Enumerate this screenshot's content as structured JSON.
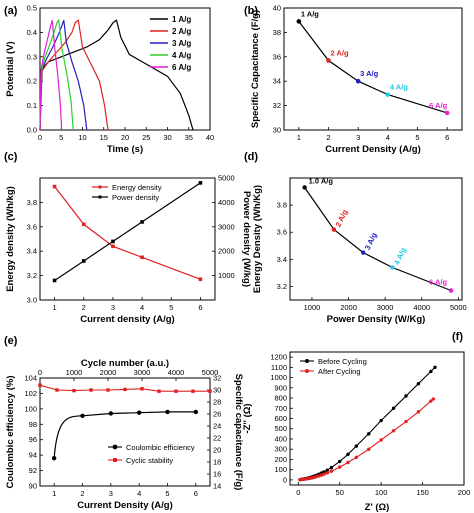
{
  "chart_data": [
    {
      "panel": "(a)",
      "type": "line",
      "xlabel": "Time (s)",
      "ylabel": "Potential (V)",
      "xlim": [
        0,
        40
      ],
      "ylim": [
        0,
        0.5
      ],
      "xticks": [
        0,
        5,
        10,
        15,
        20,
        25,
        30,
        35,
        40
      ],
      "yticks": [
        0.0,
        0.1,
        0.2,
        0.3,
        0.4,
        0.5
      ],
      "legend": "top-right",
      "series": [
        {
          "name": "1 A/g",
          "color": "#000000",
          "x": [
            0,
            0.5,
            2,
            5,
            8,
            11,
            14,
            16,
            17.2,
            18,
            19,
            21,
            25,
            30,
            33,
            35,
            36
          ],
          "y": [
            0,
            0.25,
            0.28,
            0.3,
            0.32,
            0.34,
            0.37,
            0.41,
            0.44,
            0.45,
            0.38,
            0.31,
            0.27,
            0.22,
            0.15,
            0.06,
            0
          ]
        },
        {
          "name": "2 A/g",
          "color": "#e02020",
          "x": [
            0,
            0.4,
            2,
            4,
            6,
            7.5,
            8.3,
            9,
            10,
            12,
            14,
            15.2,
            16
          ],
          "y": [
            0,
            0.24,
            0.28,
            0.32,
            0.36,
            0.4,
            0.44,
            0.45,
            0.34,
            0.27,
            0.2,
            0.1,
            0
          ]
        },
        {
          "name": "3 A/g",
          "color": "#2020c0",
          "x": [
            0,
            0.3,
            1.5,
            3,
            4.3,
            5.2,
            5.6,
            6.2,
            7.5,
            9,
            10.3,
            11
          ],
          "y": [
            0,
            0.24,
            0.29,
            0.34,
            0.39,
            0.43,
            0.45,
            0.36,
            0.28,
            0.2,
            0.1,
            0
          ]
        },
        {
          "name": "4 A/g",
          "color": "#2fcf2f",
          "x": [
            0,
            0.3,
            1.2,
            2.3,
            3.3,
            4,
            4.4,
            5.2,
            6.3,
            7.3,
            7.8
          ],
          "y": [
            0,
            0.24,
            0.3,
            0.35,
            0.4,
            0.44,
            0.45,
            0.33,
            0.23,
            0.12,
            0
          ]
        },
        {
          "name": "6 A/g",
          "color": "#e020d0",
          "x": [
            0,
            0.2,
            0.8,
            1.6,
            2.4,
            2.9,
            3.5,
            4.2,
            4.8,
            5.1
          ],
          "y": [
            0,
            0.24,
            0.3,
            0.36,
            0.42,
            0.45,
            0.33,
            0.22,
            0.1,
            0
          ]
        }
      ]
    },
    {
      "panel": "(b)",
      "type": "line",
      "xlabel": "Current Density (A/g)",
      "ylabel": "Specific Capacitance (F/g)",
      "xlim": [
        0.5,
        6.5
      ],
      "ylim": [
        30,
        40
      ],
      "xticks": [
        1,
        2,
        3,
        4,
        5,
        6
      ],
      "yticks": [
        30,
        32,
        34,
        36,
        38,
        40
      ],
      "x": [
        1,
        2,
        3,
        4,
        6
      ],
      "y": [
        38.9,
        35.7,
        34.0,
        32.9,
        31.4
      ],
      "labels": [
        "1 A/g",
        "2 A/g",
        "3 A/g",
        "4 A/g",
        "6 A/g"
      ],
      "label_colors": [
        "#000000",
        "#e02020",
        "#2020c0",
        "#20c8e8",
        "#e020d0"
      ]
    },
    {
      "panel": "(c)",
      "type": "line",
      "xlabel": "Current density (A/g)",
      "ylabel": "Energy density (Wh/kg)",
      "ylabel_right": "Power density (W/kg)",
      "xlim": [
        0.5,
        6.5
      ],
      "ylim": [
        3.0,
        4.0
      ],
      "ylim_right": [
        0,
        5000
      ],
      "xticks": [
        1,
        2,
        3,
        4,
        5,
        6
      ],
      "yticks": [
        3.0,
        3.2,
        3.4,
        3.6,
        3.8
      ],
      "yticks_right": [
        1000,
        2000,
        3000,
        4000,
        5000
      ],
      "legend": "top-center",
      "series": [
        {
          "name": "Energy density",
          "color": "#e02020",
          "axis": "left",
          "x": [
            1,
            2,
            3,
            4,
            6
          ],
          "y": [
            3.93,
            3.62,
            3.44,
            3.35,
            3.17
          ]
        },
        {
          "name": "Power density",
          "color": "#000000",
          "axis": "right",
          "x": [
            1,
            2,
            3,
            4,
            6
          ],
          "y": [
            800,
            1600,
            2400,
            3200,
            4800
          ]
        }
      ]
    },
    {
      "panel": "(d)",
      "type": "line",
      "xlabel": "Power Density (W/Kg)",
      "ylabel": "Energy Density (Wh/Kg)",
      "xlim": [
        400,
        5100
      ],
      "ylim": [
        3.1,
        4.0
      ],
      "xticks": [
        1000,
        2000,
        3000,
        4000,
        5000
      ],
      "yticks": [
        3.2,
        3.4,
        3.6,
        3.8
      ],
      "x": [
        800,
        1600,
        2400,
        3200,
        4800
      ],
      "y": [
        3.93,
        3.62,
        3.45,
        3.34,
        3.17
      ],
      "labels": [
        "1.0 A/g",
        "2 A/g",
        "3 A/g",
        "4 A/g",
        "6 A/g"
      ],
      "label_colors": [
        "#000000",
        "#e02020",
        "#2020c0",
        "#20c8e8",
        "#e020d0"
      ]
    },
    {
      "panel": "(e)",
      "type": "line",
      "xlabel": "Current Density (A/g)",
      "xlabel_top": "Cycle number (a.u.)",
      "ylabel": "Coulombic efficiency (%)",
      "ylabel_right": "Specific capacitance (F/g)",
      "xlim": [
        0.5,
        6.5
      ],
      "xlim_top": [
        0,
        5000
      ],
      "ylim": [
        90,
        104
      ],
      "ylim_right": [
        14,
        32
      ],
      "xticks": [
        1,
        2,
        3,
        4,
        5,
        6
      ],
      "xticks_top": [
        0,
        1000,
        2000,
        3000,
        4000,
        5000
      ],
      "yticks": [
        90,
        92,
        94,
        96,
        98,
        100,
        102,
        104
      ],
      "yticks_right": [
        14,
        16,
        18,
        20,
        22,
        24,
        26,
        28,
        30,
        32
      ],
      "legend": "bottom-right",
      "series": [
        {
          "name": "Coulombic efficiency",
          "color": "#000000",
          "axis": "left",
          "x": [
            1,
            2,
            3,
            4,
            5,
            6
          ],
          "y": [
            93.6,
            99.1,
            99.4,
            99.5,
            99.6,
            99.6
          ]
        },
        {
          "name": "Cyclic stability",
          "color": "#e02020",
          "axis": "right_top",
          "x": [
            0,
            500,
            1000,
            1500,
            2000,
            2500,
            3000,
            3500,
            4000,
            4500,
            5000
          ],
          "y": [
            30.8,
            30.0,
            29.9,
            30.0,
            30.0,
            30.1,
            30.2,
            29.8,
            29.8,
            29.8,
            29.8
          ]
        }
      ]
    },
    {
      "panel": "(f)",
      "type": "line",
      "xlabel": "Z' (Ω)",
      "ylabel": "-Z'' (Ω)",
      "xlim": [
        -10,
        200
      ],
      "ylim": [
        -50,
        1250
      ],
      "xticks": [
        0,
        50,
        100,
        150,
        200
      ],
      "yticks": [
        0,
        100,
        200,
        300,
        400,
        500,
        600,
        700,
        800,
        900,
        1000,
        1100,
        1200
      ],
      "legend": "top-left",
      "series": [
        {
          "name": "Before Cycling",
          "color": "#000000",
          "x": [
            2,
            4,
            6,
            8,
            10,
            12,
            14,
            16,
            18,
            20,
            22,
            25,
            28,
            31,
            35,
            40,
            50,
            60,
            70,
            85,
            100,
            115,
            130,
            145,
            160,
            165
          ],
          "y": [
            2,
            5,
            8,
            11,
            14,
            18,
            22,
            27,
            32,
            38,
            45,
            55,
            66,
            78,
            95,
            120,
            180,
            250,
            330,
            450,
            580,
            700,
            820,
            940,
            1060,
            1100
          ]
        },
        {
          "name": "After Cycling",
          "color": "#e02020",
          "x": [
            2,
            4,
            6,
            8,
            10,
            12,
            14,
            16,
            18,
            20,
            22,
            25,
            28,
            31,
            35,
            40,
            50,
            60,
            70,
            85,
            100,
            115,
            130,
            145,
            160,
            163
          ],
          "y": [
            2,
            4,
            6,
            8,
            10,
            13,
            16,
            19,
            23,
            27,
            32,
            39,
            47,
            56,
            68,
            85,
            125,
            170,
            220,
            300,
            390,
            480,
            570,
            665,
            770,
            790
          ]
        }
      ]
    }
  ]
}
